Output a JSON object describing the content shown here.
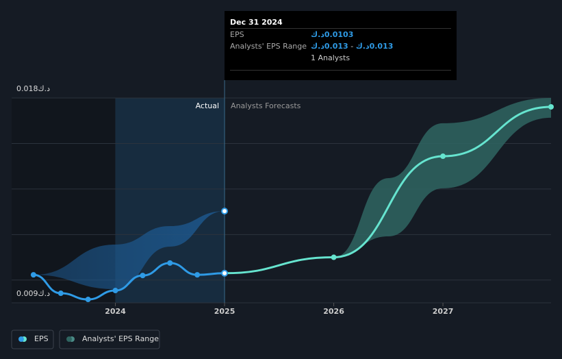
{
  "chart_data": {
    "type": "line",
    "xlim": [
      2023.05,
      2027.99
    ],
    "ylim": [
      0.009,
      0.018
    ],
    "xticks": [
      2024,
      2025,
      2026,
      2027
    ],
    "yticks": [
      {
        "value": 0.009,
        "label": "0.009د.ك"
      },
      {
        "value": 0.018,
        "label": "0.018د.ك"
      }
    ],
    "ygrid": [
      0.01,
      0.012,
      0.014,
      0.016,
      0.018
    ],
    "divider": 2025,
    "annotations": {
      "actual": "Actual",
      "forecast": "Analysts Forecasts"
    },
    "series": [
      {
        "name": "EPS",
        "color": "#2f9be6",
        "x": [
          2023.25,
          2023.5,
          2023.75,
          2024,
          2024.25,
          2024.5,
          2024.75,
          2025
        ],
        "values": [
          0.01023,
          0.00942,
          0.00915,
          0.00954,
          0.0102,
          0.01075,
          0.01023,
          0.0103
        ]
      },
      {
        "name": "Analysts' EPS Range",
        "color": "#2f6561",
        "bands": [
          {
            "color": "#1d5a92",
            "x": [
              2023.25,
              2024,
              2024.5,
              2025
            ],
            "low": [
              0.01023,
              0.0096,
              0.01147,
              0.01303
            ],
            "high": [
              0.01023,
              0.01156,
              0.01237,
              0.01303
            ]
          },
          {
            "color": "#2f6561",
            "x": [
              2026,
              2026.5,
              2027,
              2027.99
            ],
            "low": [
              0.011,
              0.01192,
              0.01403,
              0.01713
            ],
            "high": [
              0.011,
              0.01448,
              0.01689,
              0.018
            ]
          }
        ]
      }
    ],
    "forecast": {
      "color": "#66e4cf",
      "x": [
        2025,
        2026,
        2027,
        2027.99
      ],
      "values": [
        0.0103,
        0.011,
        0.01544,
        0.01761
      ]
    },
    "tooltip": {
      "date": "Dec 31 2024",
      "eps_label": "EPS",
      "eps_value": "0.0103د.ك",
      "range_label": "Analysts' EPS Range",
      "range_low": "0.013د.ك",
      "range_sep": "-",
      "range_high": "0.013د.ك",
      "analysts": "1 Analysts"
    }
  }
}
